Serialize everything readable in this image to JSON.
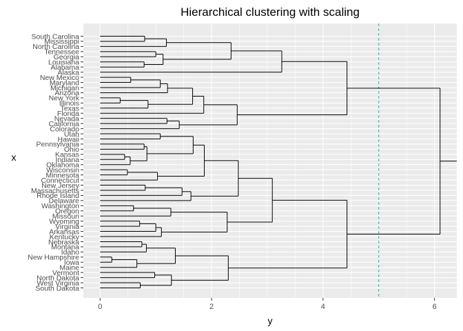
{
  "chart_data": {
    "type": "dendrogram",
    "title": "Hierarchical clustering with scaling",
    "xlabel": "y",
    "ylabel": "x",
    "xlim": [
      -0.3,
      6.4
    ],
    "x_ticks": [
      0,
      2,
      4,
      6
    ],
    "cut_height": 5,
    "cut_line_color": "#1fb0b0",
    "grid": true,
    "panel_background": "#ebebeb",
    "gridline_color": "#ffffff",
    "leaves": [
      "South Carolina",
      "Mississippi",
      "North Carolina",
      "Tennessee",
      "Georgia",
      "Louisiana",
      "Alabama",
      "Alaska",
      "New Mexico",
      "Maryland",
      "Michigan",
      "Arizona",
      "New York",
      "Illinois",
      "Texas",
      "Florida",
      "Nevada",
      "California",
      "Colorado",
      "Utah",
      "Hawaii",
      "Pennsylvania",
      "Ohio",
      "Kansas",
      "Indiana",
      "Oklahoma",
      "Wisconsin",
      "Minnesota",
      "Connecticut",
      "New Jersey",
      "Massachusetts",
      "Rhode Island",
      "Delaware",
      "Washington",
      "Oregon",
      "Missouri",
      "Wyoming",
      "Virginia",
      "Arkansas",
      "Kentucky",
      "Nebraska",
      "Montana",
      "Idaho",
      "New Hampshire",
      "Iowa",
      "Maine",
      "Vermont",
      "North Dakota",
      "West Virginia",
      "South Dakota"
    ],
    "merges": [
      {
        "a": "L:South Carolina",
        "b": "L:Mississippi",
        "h": 0.8,
        "id": "c1"
      },
      {
        "a": "c1",
        "b": "L:North Carolina",
        "h": 1.19,
        "id": "c2"
      },
      {
        "a": "L:Tennessee",
        "b": "L:Georgia",
        "h": 1.0,
        "id": "c3"
      },
      {
        "a": "L:Louisiana",
        "b": "L:Alabama",
        "h": 0.79,
        "id": "c4"
      },
      {
        "a": "c3",
        "b": "c4",
        "h": 1.13,
        "id": "c5"
      },
      {
        "a": "c2",
        "b": "c5",
        "h": 2.35,
        "id": "c6"
      },
      {
        "a": "c6",
        "b": "L:Alaska",
        "h": 3.26,
        "id": "c7"
      },
      {
        "a": "L:New Mexico",
        "b": "L:Maryland",
        "h": 0.55,
        "id": "c8"
      },
      {
        "a": "c8",
        "b": "L:Michigan",
        "h": 1.08,
        "id": "c9"
      },
      {
        "a": "c9",
        "b": "L:Arizona",
        "h": 1.21,
        "id": "c10"
      },
      {
        "a": "L:New York",
        "b": "L:Illinois",
        "h": 0.36,
        "id": "c11"
      },
      {
        "a": "c11",
        "b": "L:Texas",
        "h": 0.86,
        "id": "c12"
      },
      {
        "a": "c10",
        "b": "c12",
        "h": 1.66,
        "id": "c13"
      },
      {
        "a": "c13",
        "b": "L:Florida",
        "h": 1.86,
        "id": "c14"
      },
      {
        "a": "L:Nevada",
        "b": "L:California",
        "h": 1.2,
        "id": "c15"
      },
      {
        "a": "c15",
        "b": "L:Colorado",
        "h": 1.42,
        "id": "c16"
      },
      {
        "a": "c14",
        "b": "c16",
        "h": 2.46,
        "id": "c17"
      },
      {
        "a": "c7",
        "b": "c17",
        "h": 4.43,
        "id": "c18"
      },
      {
        "a": "L:Utah",
        "b": "L:Hawaii",
        "h": 1.08,
        "id": "c19"
      },
      {
        "a": "L:Pennsylvania",
        "b": "L:Ohio",
        "h": 0.79,
        "id": "c20"
      },
      {
        "a": "L:Kansas",
        "b": "L:Indiana",
        "h": 0.44,
        "id": "c21"
      },
      {
        "a": "c21",
        "b": "L:Oklahoma",
        "h": 0.54,
        "id": "c22"
      },
      {
        "a": "c20",
        "b": "c22",
        "h": 0.84,
        "id": "c23"
      },
      {
        "a": "c19",
        "b": "c23",
        "h": 1.67,
        "id": "c24"
      },
      {
        "a": "L:Wisconsin",
        "b": "L:Minnesota",
        "h": 0.49,
        "id": "c25"
      },
      {
        "a": "c25",
        "b": "L:Connecticut",
        "h": 1.03,
        "id": "c26"
      },
      {
        "a": "c24",
        "b": "c26",
        "h": 1.87,
        "id": "c27"
      },
      {
        "a": "L:New Jersey",
        "b": "L:Massachusetts",
        "h": 0.81,
        "id": "c28"
      },
      {
        "a": "c28",
        "b": "L:Rhode Island",
        "h": 1.47,
        "id": "c29"
      },
      {
        "a": "c29",
        "b": "L:Delaware",
        "h": 1.63,
        "id": "c30"
      },
      {
        "a": "c27",
        "b": "c30",
        "h": 2.48,
        "id": "c31"
      },
      {
        "a": "L:Washington",
        "b": "L:Oregon",
        "h": 0.6,
        "id": "c32"
      },
      {
        "a": "c32",
        "b": "L:Missouri",
        "h": 1.27,
        "id": "c33"
      },
      {
        "a": "L:Wyoming",
        "b": "L:Virginia",
        "h": 0.71,
        "id": "c34"
      },
      {
        "a": "c34",
        "b": "L:Arkansas",
        "h": 1.0,
        "id": "c35"
      },
      {
        "a": "c35",
        "b": "L:Kentucky",
        "h": 1.1,
        "id": "c36"
      },
      {
        "a": "c33",
        "b": "c36",
        "h": 2.28,
        "id": "c37"
      },
      {
        "a": "c31",
        "b": "c37",
        "h": 3.09,
        "id": "c38"
      },
      {
        "a": "L:Nebraska",
        "b": "L:Montana",
        "h": 0.75,
        "id": "c39"
      },
      {
        "a": "c39",
        "b": "L:Idaho",
        "h": 0.83,
        "id": "c40"
      },
      {
        "a": "L:New Hampshire",
        "b": "L:Iowa",
        "h": 0.21,
        "id": "c41"
      },
      {
        "a": "c41",
        "b": "L:Maine",
        "h": 0.66,
        "id": "c42"
      },
      {
        "a": "c40",
        "b": "c42",
        "h": 1.35,
        "id": "c43"
      },
      {
        "a": "L:Vermont",
        "b": "L:North Dakota",
        "h": 0.98,
        "id": "c44"
      },
      {
        "a": "L:West Virginia",
        "b": "L:South Dakota",
        "h": 0.72,
        "id": "c45"
      },
      {
        "a": "c44",
        "b": "c45",
        "h": 1.28,
        "id": "c46"
      },
      {
        "a": "c43",
        "b": "c46",
        "h": 2.3,
        "id": "c47"
      },
      {
        "a": "c38",
        "b": "c47",
        "h": 4.43,
        "id": "c48"
      },
      {
        "a": "c18",
        "b": "c48",
        "h": 6.1,
        "id": "c49"
      }
    ]
  }
}
